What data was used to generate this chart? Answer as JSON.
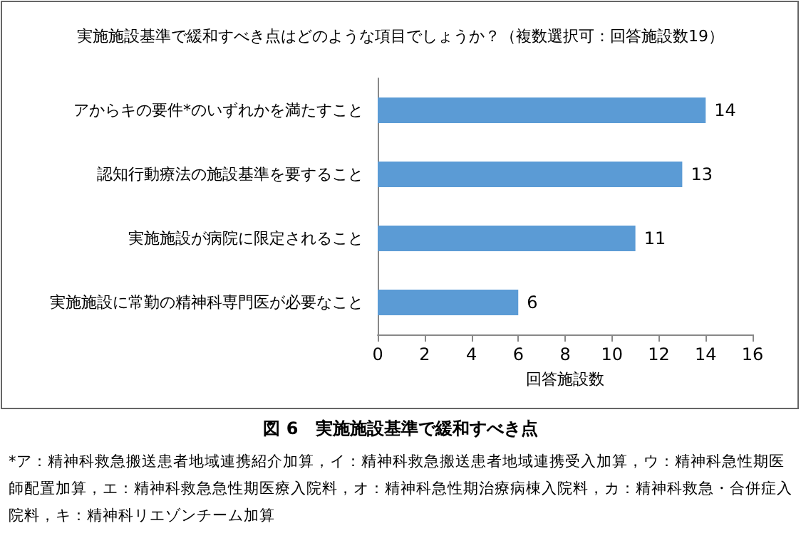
{
  "chart_data": {
    "type": "bar",
    "orientation": "horizontal",
    "title": "実施施設基準で緩和すべき点はどのような項目でしょうか？（複数選択可：回答施設数19）",
    "categories": [
      "アからキの要件*のいずれかを満たすこと",
      "認知行動療法の施設基準を要すること",
      "実施施設が病院に限定されること",
      "実施施設に常勤の精神科専門医が必要なこと"
    ],
    "values": [
      14,
      13,
      11,
      6
    ],
    "color": "#5b9bd5",
    "xlim": [
      0,
      16
    ],
    "xticks": [
      0,
      2,
      4,
      6,
      8,
      10,
      12,
      14,
      16
    ],
    "xlabel": "回答施設数",
    "grid": false,
    "data_labels": true,
    "annotations": [
      "図 6　実施施設基準で緩和すべき点",
      "*ア：精神科救急搬送患者地域連携紹介加算，イ：精神科救急搬送患者地域連携受入加算，ウ：精神科急性期医師配置加算，エ：精神科救急急性期医療入院料，オ：精神科急性期治療病棟入院料，カ：精神科救急・合併症入院料，キ：精神科リエゾンチーム加算"
    ]
  }
}
